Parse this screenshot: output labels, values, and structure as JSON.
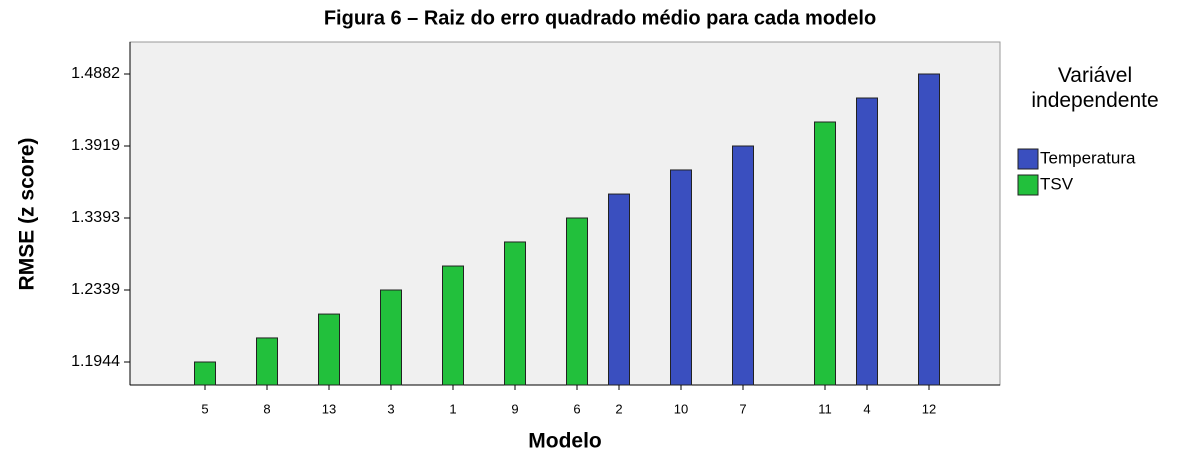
{
  "chart_data": {
    "type": "bar",
    "title": "Figura 6 – Raiz do erro quadrado médio para cada modelo",
    "xlabel": "Modelo",
    "ylabel": "RMSE (z score)",
    "legend_title": "Variável independente",
    "categories": [
      "5",
      "8",
      "13",
      "3",
      "1",
      "9",
      "6",
      "2",
      "10",
      "7",
      "11",
      "4",
      "12"
    ],
    "series": [
      {
        "name": "Temperatura",
        "color": "#3a4fbf",
        "values": [
          null,
          null,
          null,
          null,
          null,
          null,
          null,
          1.3568,
          1.3744,
          1.3919,
          null,
          1.4561,
          1.4882
        ]
      },
      {
        "name": "TSV",
        "color": "#22c03c",
        "values": [
          1.1944,
          1.2076,
          1.2207,
          1.2339,
          1.269,
          1.3042,
          1.3393,
          null,
          null,
          null,
          1.424,
          null,
          null
        ]
      }
    ],
    "ylim": [
      1.1818,
      1.531
    ],
    "yticks": [
      1.1944,
      1.2339,
      1.3393,
      1.3919,
      1.4882
    ]
  }
}
